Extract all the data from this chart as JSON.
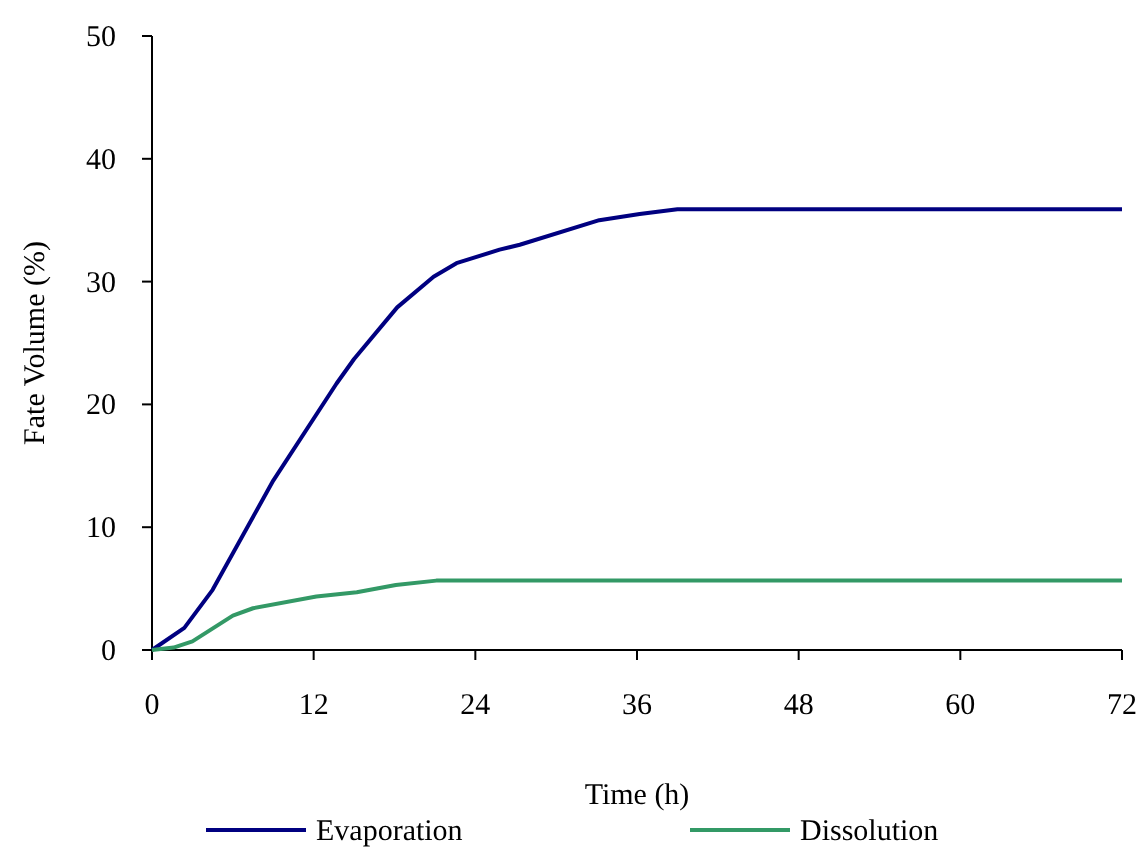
{
  "chart_data": {
    "type": "line",
    "xlabel": "Time (h)",
    "ylabel": "Fate Volume (%)",
    "xlim": [
      0,
      72
    ],
    "xticks": [
      0,
      12,
      24,
      36,
      48,
      60,
      72
    ],
    "ylim": [
      0,
      50
    ],
    "yticks": [
      0,
      10,
      20,
      30,
      40,
      50
    ],
    "grid": false,
    "legend": "bottom",
    "marker": "none",
    "line_style": "solid",
    "series": [
      {
        "name": "Evaporation",
        "color": "#000080",
        "x": [
          0,
          2.4,
          4.5,
          9,
          13.7,
          15,
          18.2,
          20.9,
          22.6,
          25.8,
          27.3,
          33.2,
          36.2,
          39,
          72
        ],
        "values": [
          0,
          1.8,
          4.9,
          13.8,
          21.7,
          23.7,
          27.9,
          30.4,
          31.5,
          32.6,
          33,
          35,
          35.5,
          35.9,
          35.9
        ]
      },
      {
        "name": "Dissolution",
        "color": "#339966",
        "x": [
          0,
          1.6,
          3,
          6,
          7.5,
          12.2,
          15.2,
          18.1,
          21.1,
          72
        ],
        "values": [
          0,
          0.2,
          0.7,
          2.8,
          3.4,
          4.35,
          4.7,
          5.3,
          5.65,
          5.65
        ]
      }
    ]
  }
}
